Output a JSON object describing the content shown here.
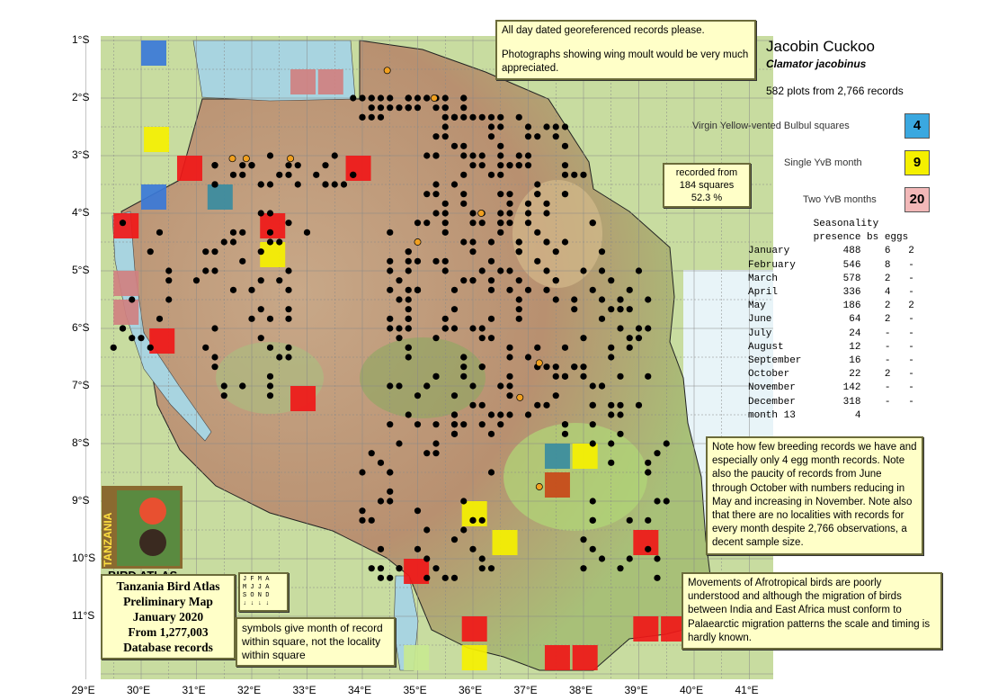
{
  "title": "Jacobin Cuckoo",
  "scientific_name": "Clamator jacobinus",
  "plots_summary": "582 plots from 2,766 records",
  "request_note": [
    "All day dated georeferenced records please.",
    "Photographs showing wing moult would be very much appreciated."
  ],
  "recorded_box": [
    "recorded from",
    "184 squares",
    "52.3 %"
  ],
  "legend": [
    {
      "label": "Virgin Yellow-vented Bulbul squares",
      "value": "4",
      "color": "#3aa8e0"
    },
    {
      "label": "Single YvB month",
      "value": "9",
      "color": "#f5f000"
    },
    {
      "label": "Two YvB months",
      "value": "20",
      "color": "#f2b8b8"
    }
  ],
  "seasonality": {
    "title": "Seasonality",
    "headers": [
      "presence",
      "bs",
      "eggs"
    ],
    "rows": [
      [
        "January",
        "488",
        "6",
        "2"
      ],
      [
        "February",
        "546",
        "8",
        "-"
      ],
      [
        "March",
        "578",
        "2",
        "-"
      ],
      [
        "April",
        "336",
        "4",
        "-"
      ],
      [
        "May",
        "186",
        "2",
        "2"
      ],
      [
        "June",
        "64",
        "2",
        "-"
      ],
      [
        "July",
        "24",
        "-",
        "-"
      ],
      [
        "August",
        "12",
        "-",
        "-"
      ],
      [
        "September",
        "16",
        "-",
        "-"
      ],
      [
        "October",
        "22",
        "2",
        "-"
      ],
      [
        "November",
        "142",
        "-",
        "-"
      ],
      [
        "December",
        "318",
        "-",
        "-"
      ],
      [
        "month 13",
        "4",
        "",
        ""
      ]
    ]
  },
  "breeding_note": "Note how few breeding records we have and especially only 4 egg month records. Note also the paucity of records from June through October with numbers reducing in May and increasing in November. Note also that there are no localities with records for every month despite 2,766 observations, a decent sample size.",
  "migration_note": "Movements of Afrotropical birds are poorly understood and although the migration of birds between India and East Africa must conform to Palaearctic migration patterns the scale and timing is hardly known.",
  "atlas_box": [
    "Tanzania Bird Atlas",
    "Preliminary Map",
    "January 2020",
    "From 1,277,003",
    "Database records"
  ],
  "logo_text": [
    "TANZANIA",
    "BIRD ATLAS"
  ],
  "month_key": [
    [
      "J",
      "F",
      "M",
      "A"
    ],
    [
      "M",
      "J",
      "J",
      "A"
    ],
    [
      "S",
      "O",
      "N",
      "D"
    ]
  ],
  "symbols_note": "symbols give month of record within square, not the locality within square",
  "lat_labels": [
    "1°S",
    "2°S",
    "3°S",
    "4°S",
    "5°S",
    "6°S",
    "7°S",
    "8°S",
    "9°S",
    "10°S",
    "11°S"
  ],
  "lon_labels": [
    "29°E",
    "30°E",
    "31°E",
    "32°E",
    "33°E",
    "34°E",
    "35°E",
    "36°E",
    "37°E",
    "38°E",
    "39°E",
    "40°E",
    "41°E"
  ],
  "squares": [
    {
      "lon": 30.0,
      "lat": 1.0,
      "type": "virgin"
    },
    {
      "lon": 32.7,
      "lat": 1.5,
      "type": "two"
    },
    {
      "lon": 33.2,
      "lat": 1.5,
      "type": "two"
    },
    {
      "lon": 30.05,
      "lat": 2.5,
      "type": "single"
    },
    {
      "lon": 30.65,
      "lat": 3.0,
      "type": "red"
    },
    {
      "lon": 33.7,
      "lat": 3.0,
      "type": "red"
    },
    {
      "lon": 30.0,
      "lat": 3.5,
      "type": "virgin"
    },
    {
      "lon": 31.2,
      "lat": 3.5,
      "type": "teal"
    },
    {
      "lon": 29.5,
      "lat": 4.0,
      "type": "red"
    },
    {
      "lon": 32.15,
      "lat": 4.0,
      "type": "red"
    },
    {
      "lon": 32.15,
      "lat": 4.5,
      "type": "single"
    },
    {
      "lon": 29.5,
      "lat": 5.0,
      "type": "two"
    },
    {
      "lon": 29.5,
      "lat": 5.5,
      "type": "two"
    },
    {
      "lon": 30.15,
      "lat": 6.0,
      "type": "red"
    },
    {
      "lon": 32.7,
      "lat": 7.0,
      "type": "red"
    },
    {
      "lon": 37.3,
      "lat": 8.0,
      "type": "teal"
    },
    {
      "lon": 37.8,
      "lat": 8.0,
      "type": "single"
    },
    {
      "lon": 37.3,
      "lat": 8.5,
      "type": "rust"
    },
    {
      "lon": 35.8,
      "lat": 9.0,
      "type": "single"
    },
    {
      "lon": 36.35,
      "lat": 9.5,
      "type": "single"
    },
    {
      "lon": 38.9,
      "lat": 9.5,
      "type": "red"
    },
    {
      "lon": 34.75,
      "lat": 10.0,
      "type": "red"
    },
    {
      "lon": 35.8,
      "lat": 11.0,
      "type": "red"
    },
    {
      "lon": 35.8,
      "lat": 11.5,
      "type": "single"
    },
    {
      "lon": 34.75,
      "lat": 11.5,
      "type": "pale"
    },
    {
      "lon": 37.3,
      "lat": 11.5,
      "type": "red"
    },
    {
      "lon": 37.8,
      "lat": 11.5,
      "type": "red"
    },
    {
      "lon": 38.9,
      "lat": 11.0,
      "type": "red"
    },
    {
      "lon": 39.4,
      "lat": 11.0,
      "type": "red"
    }
  ],
  "square_colors": {
    "virgin": "#3a78d8",
    "two": "#d08080",
    "single": "#f5f000",
    "red": "#f01818",
    "teal": "#3a8ca0",
    "rust": "#c84818",
    "pale": "#c8e890"
  },
  "dot_color": "#000000",
  "highlight_dot_color": "#f0a020",
  "highlight_dots": [
    [
      34.45,
      1.52
    ],
    [
      35.3,
      2.0
    ],
    [
      31.65,
      3.05
    ],
    [
      31.9,
      3.05
    ],
    [
      32.7,
      3.05
    ],
    [
      36.15,
      4.0
    ],
    [
      35.0,
      4.5
    ],
    [
      37.2,
      6.6
    ],
    [
      36.85,
      7.2
    ],
    [
      37.2,
      8.75
    ]
  ]
}
